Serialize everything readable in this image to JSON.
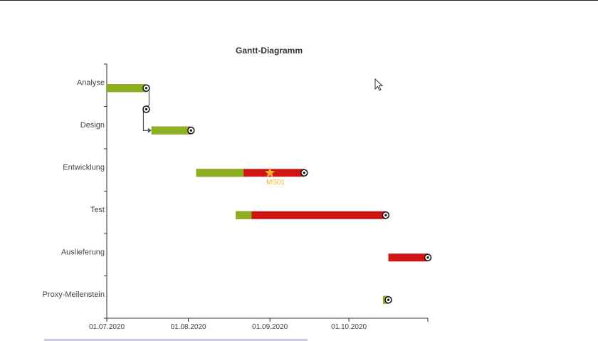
{
  "chart_data": {
    "type": "gantt",
    "title": "Gantt-Diagramm",
    "x_range": [
      "2020-07-01",
      "2020-10-31"
    ],
    "x_ticks": [
      "01.07.2020",
      "01.08.2020",
      "01.09.2020",
      "01.10.2020"
    ],
    "tasks": [
      {
        "label": "Analyse",
        "start": "2020-07-01",
        "end": "2020-07-16",
        "complete_until": "2020-07-16"
      },
      {
        "label": "Design",
        "start": "2020-07-18",
        "end": "2020-08-02",
        "complete_until": "2020-08-01"
      },
      {
        "label": "Entwicklung",
        "start": "2020-08-04",
        "end": "2020-09-14",
        "complete_until": "2020-08-22"
      },
      {
        "label": "Test",
        "start": "2020-08-19",
        "end": "2020-10-15",
        "complete_until": "2020-08-25"
      },
      {
        "label": "Auslieferung",
        "start": "2020-10-16",
        "end": "2020-10-31",
        "complete_until": "2020-10-16"
      },
      {
        "label": "Proxy-Meilenstein",
        "start": "2020-10-14",
        "end": "2020-10-16",
        "complete_until": "2020-10-16"
      }
    ],
    "milestones": [
      {
        "label": "MS01",
        "task": "Entwicklung",
        "date": "2020-09-01"
      }
    ],
    "dependencies": [
      {
        "from": "Analyse",
        "to": "Design"
      }
    ],
    "colors": {
      "complete": "#8db021",
      "remaining": "#d01515",
      "milestone": "#f0b429",
      "axis": "#333333"
    }
  }
}
